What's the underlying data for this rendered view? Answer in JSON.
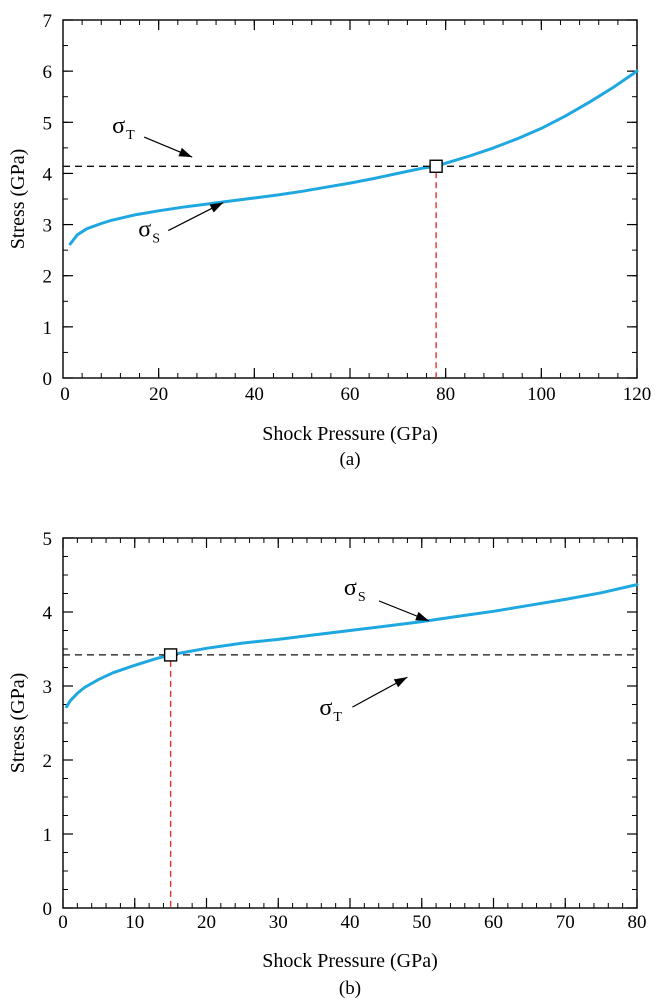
{
  "colors": {
    "curve": "#1fa8e0",
    "threshold": "#111111",
    "crossing": "#e53030",
    "axis": "#000000"
  },
  "chart_data": [
    {
      "type": "line",
      "panel_label": "(a)",
      "title": "",
      "xlabel": "Shock Pressure (GPa)",
      "ylabel": "Stress (GPa)",
      "xlim": [
        0,
        120
      ],
      "ylim": [
        0,
        7
      ],
      "xticks": [
        20,
        40,
        60,
        80,
        100,
        120
      ],
      "yticks": [
        0,
        1,
        2,
        3,
        4,
        5,
        6,
        7
      ],
      "x_tick_labels": [
        "20",
        "40",
        "60",
        "80",
        "100",
        "120"
      ],
      "y_tick_labels": [
        "0",
        "1",
        "2",
        "3",
        "4",
        "5",
        "6",
        "7"
      ],
      "x_minor_step": 4,
      "y_minor_step": 0.5,
      "grid": false,
      "series": [
        {
          "name": "σS",
          "style": "solid",
          "x": [
            1.5,
            3,
            5,
            8,
            10,
            15,
            20,
            25,
            30,
            35,
            40,
            45,
            50,
            55,
            60,
            65,
            70,
            75,
            78,
            80,
            85,
            90,
            95,
            100,
            105,
            110,
            115,
            120
          ],
          "y": [
            2.62,
            2.8,
            2.92,
            3.02,
            3.08,
            3.19,
            3.27,
            3.34,
            3.4,
            3.46,
            3.52,
            3.58,
            3.65,
            3.73,
            3.81,
            3.9,
            4.0,
            4.1,
            4.14,
            4.2,
            4.34,
            4.5,
            4.68,
            4.88,
            5.12,
            5.39,
            5.68,
            6.0
          ]
        },
        {
          "name": "σT",
          "style": "dashed",
          "x": [
            0,
            120
          ],
          "y": [
            4.14,
            4.14
          ]
        }
      ],
      "intersection": {
        "x": 78,
        "y": 4.14
      },
      "annotations": [
        {
          "base": "σ",
          "sub": "T",
          "series": "σT",
          "arrow_to": [
            27,
            4.32
          ]
        },
        {
          "base": "σ",
          "sub": "S",
          "series": "σS",
          "arrow_to": [
            33.5,
            3.43
          ]
        }
      ]
    },
    {
      "type": "line",
      "panel_label": "(b)",
      "title": "",
      "xlabel": "Shock Pressure (GPa)",
      "ylabel": "Stress (GPa)",
      "xlim": [
        0,
        80
      ],
      "ylim": [
        0,
        5
      ],
      "xticks": [
        0,
        10,
        20,
        30,
        40,
        50,
        60,
        70,
        80
      ],
      "yticks": [
        0,
        1,
        2,
        3,
        4,
        5
      ],
      "x_tick_labels": [
        "0",
        "10",
        "20",
        "30",
        "40",
        "50",
        "60",
        "70",
        "80"
      ],
      "y_tick_labels": [
        "0",
        "1",
        "2",
        "3",
        "4",
        "5"
      ],
      "x_minor_step": 2,
      "y_minor_step": 0.25,
      "grid": false,
      "series": [
        {
          "name": "σS",
          "style": "solid",
          "x": [
            0.5,
            1,
            2,
            3,
            5,
            7,
            10,
            13,
            15,
            20,
            25,
            30,
            35,
            40,
            45,
            50,
            55,
            60,
            65,
            70,
            75,
            80
          ],
          "y": [
            2.72,
            2.8,
            2.9,
            2.98,
            3.09,
            3.18,
            3.28,
            3.37,
            3.42,
            3.51,
            3.58,
            3.63,
            3.69,
            3.75,
            3.81,
            3.87,
            3.94,
            4.01,
            4.09,
            4.17,
            4.26,
            4.37
          ]
        },
        {
          "name": "σT",
          "style": "dashed",
          "x": [
            0,
            80
          ],
          "y": [
            3.42,
            3.42
          ]
        }
      ],
      "intersection": {
        "x": 15,
        "y": 3.42
      },
      "annotations": [
        {
          "base": "σ",
          "sub": "S",
          "series": "σS",
          "arrow_to": [
            51,
            3.88
          ]
        },
        {
          "base": "σ",
          "sub": "T",
          "series": "σT",
          "arrow_to": [
            48,
            3.12
          ]
        }
      ]
    }
  ]
}
